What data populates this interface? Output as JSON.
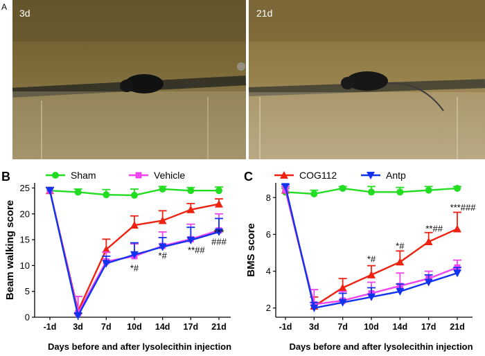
{
  "panels": {
    "A": {
      "label": "A",
      "photos": [
        {
          "label": "3d",
          "subject": "mouse-on-beam"
        },
        {
          "label": "21d",
          "subject": "mouse-on-beam"
        }
      ]
    },
    "B": {
      "label": "B"
    },
    "C": {
      "label": "C"
    }
  },
  "legend": [
    {
      "name": "Sham",
      "color": "#22dd22",
      "marker": "circle"
    },
    {
      "name": "Vehicle",
      "color": "#ee44ee",
      "marker": "square"
    },
    {
      "name": "COG112",
      "color": "#ee2211",
      "marker": "triangle-up"
    },
    {
      "name": "Antp",
      "color": "#1133ee",
      "marker": "triangle-down"
    }
  ],
  "chart_data": [
    {
      "id": "B",
      "type": "line",
      "xlabel": "Days before and after lysolecithin injection",
      "ylabel": "Beam walking score",
      "categories": [
        "-1d",
        "3d",
        "7d",
        "10d",
        "14d",
        "17d",
        "21d"
      ],
      "ylim": [
        0,
        26
      ],
      "yticks": [
        0,
        5,
        10,
        15,
        20,
        25
      ],
      "grid": false,
      "legend_entries": [
        "Sham",
        "Vehicle"
      ],
      "series": [
        {
          "name": "Sham",
          "values": [
            24.5,
            24.2,
            23.7,
            23.6,
            24.8,
            24.5,
            24.5
          ],
          "err": [
            0.6,
            0.6,
            1.0,
            1.2,
            0.5,
            0.6,
            0.7
          ]
        },
        {
          "name": "COG112",
          "values": [
            24.5,
            1.2,
            13.1,
            17.8,
            18.7,
            20.8,
            21.9
          ],
          "err": [
            0.6,
            2.8,
            2.0,
            1.8,
            1.9,
            1.2,
            1.0
          ]
        },
        {
          "name": "Vehicle",
          "values": [
            24.5,
            0.8,
            10.8,
            11.8,
            13.8,
            15.1,
            16.8
          ],
          "err": [
            0.6,
            3.2,
            1.8,
            2.4,
            2.7,
            2.9,
            3.2
          ]
        },
        {
          "name": "Antp",
          "values": [
            24.5,
            0.3,
            10.4,
            12.1,
            13.6,
            14.9,
            16.5
          ],
          "err": [
            0.6,
            0.5,
            1.4,
            2.3,
            1.8,
            2.5,
            2.6
          ]
        }
      ],
      "annotations": [
        {
          "x": "10d",
          "text": "*#",
          "y": 8.9
        },
        {
          "x": "14d",
          "text": "*#",
          "y": 11.3
        },
        {
          "x": "17d",
          "text": "**##",
          "y": 12.4
        },
        {
          "x": "21d",
          "text": "###",
          "y": 14.0
        },
        {
          "x": "21d",
          "text": "***",
          "y": 15.8
        }
      ]
    },
    {
      "id": "C",
      "type": "line",
      "xlabel": "Days before and after lysolecithin injection",
      "ylabel": "BMS score",
      "categories": [
        "-1d",
        "3d",
        "7d",
        "10d",
        "14d",
        "17d",
        "21d"
      ],
      "ylim": [
        1.5,
        8.8
      ],
      "yticks": [
        2,
        4,
        6,
        8
      ],
      "grid": false,
      "legend_entries": [
        "COG112",
        "Antp"
      ],
      "series": [
        {
          "name": "Sham",
          "values": [
            8.3,
            8.2,
            8.5,
            8.3,
            8.3,
            8.4,
            8.5
          ],
          "err": [
            0.2,
            0.2,
            0.1,
            0.3,
            0.25,
            0.2,
            0.1
          ]
        },
        {
          "name": "COG112",
          "values": [
            8.4,
            2.1,
            3.1,
            3.8,
            4.5,
            5.6,
            6.3
          ],
          "err": [
            0.2,
            0.5,
            0.5,
            0.5,
            0.6,
            0.5,
            0.9
          ]
        },
        {
          "name": "Vehicle",
          "values": [
            8.4,
            2.2,
            2.4,
            2.8,
            3.2,
            3.6,
            4.2
          ],
          "err": [
            0.2,
            0.8,
            0.5,
            0.6,
            0.7,
            0.4,
            0.4
          ]
        },
        {
          "name": "Antp",
          "values": [
            8.6,
            2.0,
            2.3,
            2.6,
            2.9,
            3.4,
            3.9
          ],
          "err": [
            0.1,
            0.3,
            0.5,
            0.5,
            0.4,
            0.4,
            0.3
          ]
        }
      ],
      "annotations": [
        {
          "x": "10d",
          "text": "*#",
          "y": 4.5
        },
        {
          "x": "14d",
          "text": "*#",
          "y": 5.2
        },
        {
          "x": "17d",
          "text": "**##",
          "y": 6.15
        },
        {
          "x": "21d",
          "text": "***###",
          "y": 7.3
        }
      ]
    }
  ]
}
